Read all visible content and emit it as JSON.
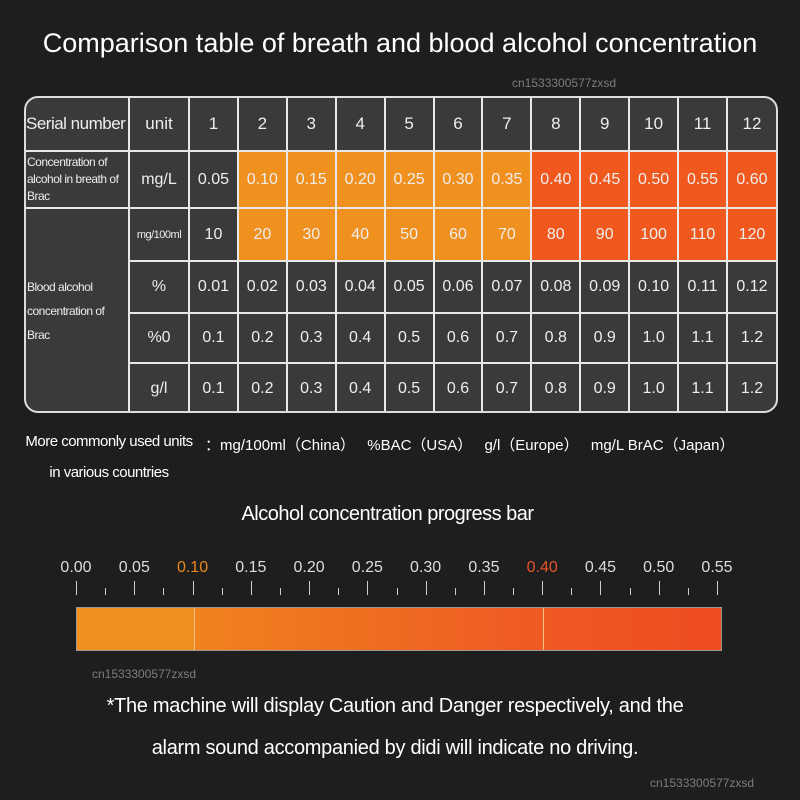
{
  "title": "Comparison table of breath and blood alcohol concentration",
  "table": {
    "header": {
      "label": "Serial number",
      "unit": "unit",
      "cols": [
        "1",
        "2",
        "3",
        "4",
        "5",
        "6",
        "7",
        "8",
        "9",
        "10",
        "11",
        "12"
      ]
    },
    "breath_label": "Concentration of alcohol in breath of Brac",
    "blood_label": "Blood alcohol concentration of Brac",
    "rows": [
      {
        "unit": "mg/L",
        "values": [
          "0.05",
          "0.10",
          "0.15",
          "0.20",
          "0.25",
          "0.30",
          "0.35",
          "0.40",
          "0.45",
          "0.50",
          "0.55",
          "0.60"
        ]
      },
      {
        "unit": "mg/100ml",
        "values": [
          "10",
          "20",
          "30",
          "40",
          "50",
          "60",
          "70",
          "80",
          "90",
          "100",
          "110",
          "120"
        ]
      },
      {
        "unit": "%",
        "values": [
          "0.01",
          "0.02",
          "0.03",
          "0.04",
          "0.05",
          "0.06",
          "0.07",
          "0.08",
          "0.09",
          "0.10",
          "0.11",
          "0.12"
        ]
      },
      {
        "unit": "%0",
        "values": [
          "0.1",
          "0.2",
          "0.3",
          "0.4",
          "0.5",
          "0.6",
          "0.7",
          "0.8",
          "0.9",
          "1.0",
          "1.1",
          "1.2"
        ]
      },
      {
        "unit": "g/l",
        "values": [
          "0.1",
          "0.2",
          "0.3",
          "0.4",
          "0.5",
          "0.6",
          "0.7",
          "0.8",
          "0.9",
          "1.0",
          "1.1",
          "1.2"
        ]
      }
    ],
    "colors": {
      "cell": "#3a3a3a",
      "caution": "#f0901e",
      "danger": "#f0581e"
    }
  },
  "units": {
    "label": "More commonly used units in various countries",
    "items": [
      "：mg/100ml（China）",
      "%BAC（USA）",
      "g/l（Europe）",
      "mg/L BrAC（Japan）"
    ]
  },
  "progress": {
    "title": "Alcohol concentration progress bar",
    "ticks": [
      "0.00",
      "0.05",
      "0.10",
      "0.15",
      "0.20",
      "0.25",
      "0.30",
      "0.35",
      "0.40",
      "0.45",
      "0.50",
      "0.55"
    ],
    "caution_value": 0.1,
    "danger_value": 0.4,
    "max": 0.55,
    "colors": {
      "tick": "#dddddd",
      "caution": "#e8891e",
      "danger": "#e8552a"
    }
  },
  "note": {
    "line1": "*The machine will display Caution and Danger respectively, and the",
    "line2": "alarm sound accompanied by didi will indicate no driving."
  },
  "watermark": "cn1533300577zxsd"
}
